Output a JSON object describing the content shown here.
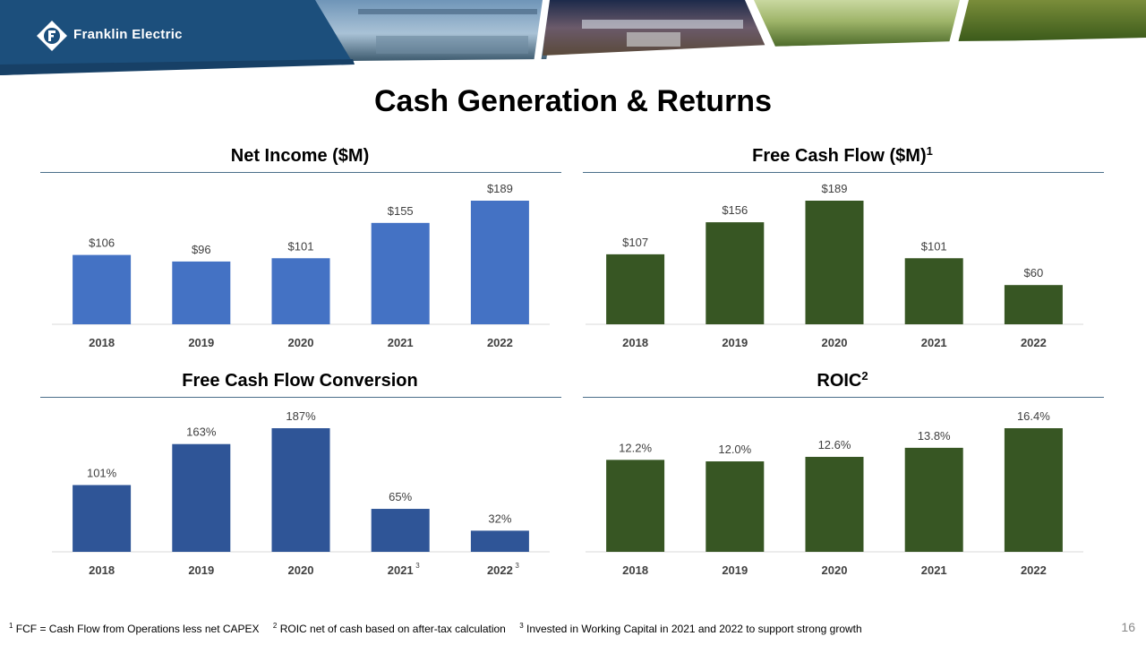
{
  "header": {
    "company": "Franklin Electric",
    "brand_color": "#1c4f7c"
  },
  "slide": {
    "title": "Cash Generation & Returns",
    "page_number": "16"
  },
  "panels": {
    "net_income_title": "Net Income ($M)",
    "fcf_title": "Free Cash Flow ($M)",
    "fcf_title_sup": "1",
    "conversion_title": "Free Cash Flow Conversion",
    "roic_title": "ROIC",
    "roic_title_sup": "2"
  },
  "footnotes": {
    "fn1_num": "1",
    "fn1": "FCF = Cash Flow from Operations less net CAPEX",
    "fn2_num": "2",
    "fn2": "ROIC net of cash based on after-tax calculation",
    "fn3_num": "3",
    "fn3": "Invested in Working Capital in 2021 and 2022 to support strong growth"
  },
  "chart_data": [
    {
      "type": "bar",
      "title": "Net Income ($M)",
      "categories": [
        "2018",
        "2019",
        "2020",
        "2021",
        "2022"
      ],
      "category_sup": [
        "",
        "",
        "",
        "",
        ""
      ],
      "values": [
        106,
        96,
        101,
        155,
        189
      ],
      "labels": [
        "$106",
        "$96",
        "$101",
        "$155",
        "$189"
      ],
      "ylim": [
        0,
        189
      ],
      "color": "#4472c4",
      "grid": false
    },
    {
      "type": "bar",
      "title": "Free Cash Flow ($M)",
      "categories": [
        "2018",
        "2019",
        "2020",
        "2021",
        "2022"
      ],
      "category_sup": [
        "",
        "",
        "",
        "",
        ""
      ],
      "values": [
        107,
        156,
        189,
        101,
        60
      ],
      "labels": [
        "$107",
        "$156",
        "$189",
        "$101",
        "$60"
      ],
      "ylim": [
        0,
        189
      ],
      "color": "#375623",
      "grid": false
    },
    {
      "type": "bar",
      "title": "Free Cash Flow Conversion",
      "categories": [
        "2018",
        "2019",
        "2020",
        "2021",
        "2022"
      ],
      "category_sup": [
        "",
        "",
        "",
        "3",
        "3"
      ],
      "values": [
        101,
        163,
        187,
        65,
        32
      ],
      "labels": [
        "101%",
        "163%",
        "187%",
        "65%",
        "32%"
      ],
      "ylim": [
        0,
        187
      ],
      "color": "#2f5597",
      "grid": false
    },
    {
      "type": "bar",
      "title": "ROIC",
      "categories": [
        "2018",
        "2019",
        "2020",
        "2021",
        "2022"
      ],
      "category_sup": [
        "",
        "",
        "",
        "",
        ""
      ],
      "values": [
        12.2,
        12.0,
        12.6,
        13.8,
        16.4
      ],
      "labels": [
        "12.2%",
        "12.0%",
        "12.6%",
        "13.8%",
        "16.4%"
      ],
      "ylim": [
        0,
        16.4
      ],
      "color": "#375623",
      "grid": false
    }
  ]
}
